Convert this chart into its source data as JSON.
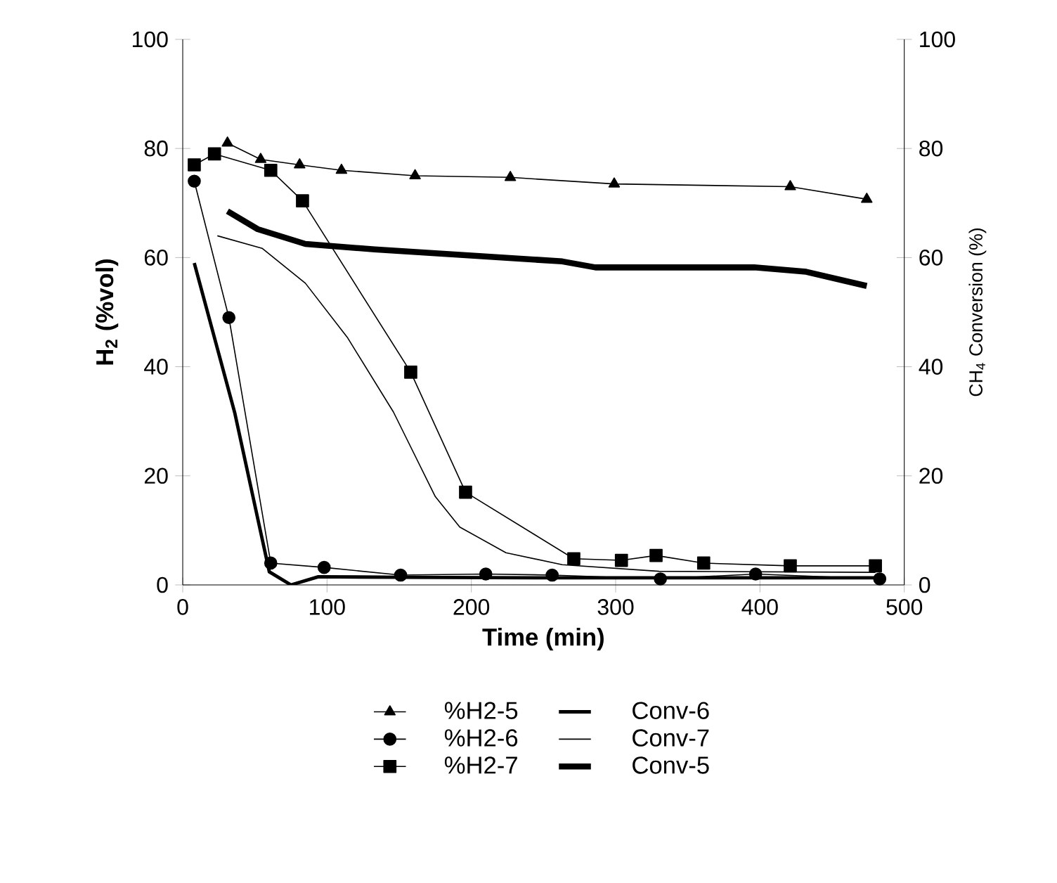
{
  "chart_data": {
    "type": "line",
    "xlabel": "Time (min)",
    "ylabel": "H$_{2}$ (%vol)",
    "y2label": "CH$_{4}$ Conversion (%)",
    "xlim": [
      0,
      500
    ],
    "xticks": [
      0,
      100,
      200,
      300,
      400,
      500
    ],
    "ylim": [
      0,
      100
    ],
    "yticks": [
      0,
      20,
      40,
      60,
      80,
      100
    ],
    "y2lim": [
      0,
      100
    ],
    "y2ticks": [
      0,
      20,
      40,
      60,
      80,
      100
    ],
    "legend": "bottom",
    "grid": false,
    "series": [
      {
        "name": "%H2-5",
        "color": "#000000",
        "marker": "triangle",
        "x": [
          31,
          54,
          81,
          110,
          161,
          227,
          299,
          421,
          474
        ],
        "values": [
          81,
          78,
          77,
          76,
          75,
          74.7,
          73.5,
          73,
          70.7
        ]
      },
      {
        "name": "%H2-6",
        "color": "#000000",
        "marker": "circle",
        "x": [
          8,
          32,
          61,
          98,
          151,
          210,
          256,
          331,
          397,
          483
        ],
        "values": [
          74,
          49,
          4,
          3.2,
          1.8,
          2,
          1.8,
          1.1,
          2,
          1.1
        ]
      },
      {
        "name": "%H2-7",
        "color": "#000000",
        "marker": "square",
        "x": [
          8,
          22,
          61,
          83,
          158,
          196,
          271,
          304,
          328,
          361,
          421,
          480
        ],
        "values": [
          77,
          79,
          76,
          70.4,
          39,
          17,
          4.8,
          4.5,
          5.4,
          4,
          3.5,
          3.5
        ]
      },
      {
        "name": "Conv-6",
        "color": "#000000",
        "marker": "none",
        "axis": "y2",
        "x": [
          8,
          36,
          60,
          75,
          94,
          150,
          250,
          350,
          480
        ],
        "values": [
          59,
          31.6,
          2.4,
          0,
          1.5,
          1.4,
          1.3,
          1.3,
          1.3
        ]
      },
      {
        "name": "Conv-7",
        "color": "#000000",
        "marker": "none",
        "axis": "y2",
        "x": [
          24,
          55,
          85,
          114,
          146,
          175,
          192,
          224,
          263,
          330,
          480
        ],
        "values": [
          64,
          61.7,
          55.3,
          45.4,
          31.7,
          16.2,
          10.6,
          5.9,
          3.7,
          2.5,
          2.3
        ]
      },
      {
        "name": "Conv-5",
        "color": "#000000",
        "marker": "none",
        "axis": "y2",
        "x": [
          31,
          52,
          85,
          133,
          198,
          263,
          286,
          341,
          396,
          432,
          474
        ],
        "values": [
          68.5,
          65.2,
          62.5,
          61.5,
          60.4,
          59.3,
          58.2,
          58.2,
          58.2,
          57.4,
          54.8
        ]
      }
    ]
  }
}
